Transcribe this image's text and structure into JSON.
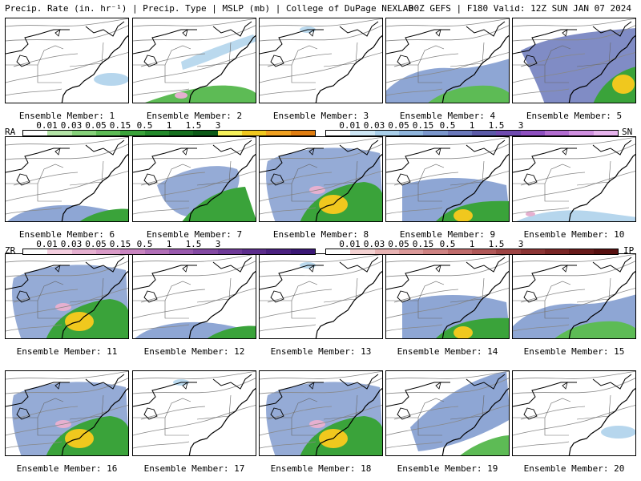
{
  "header": {
    "left": "Precip. Rate (in. hr⁻¹) | Precip. Type | MSLP (mb) | College of DuPage NEXLAB",
    "right": "00Z GEFS | F180 Valid: 12Z SUN JAN 07 2024"
  },
  "members": [
    {
      "label": "Ensemble Member: 1",
      "precip": "light"
    },
    {
      "label": "Ensemble Member: 2",
      "precip": "coastal-mix"
    },
    {
      "label": "Ensemble Member: 3",
      "precip": "minimal"
    },
    {
      "label": "Ensemble Member: 4",
      "precip": "broad"
    },
    {
      "label": "Ensemble Member: 5",
      "precip": "strong-ne"
    },
    {
      "label": "Ensemble Member: 6",
      "precip": "southern"
    },
    {
      "label": "Ensemble Member: 7",
      "precip": "coastal"
    },
    {
      "label": "Ensemble Member: 8",
      "precip": "strong"
    },
    {
      "label": "Ensemble Member: 9",
      "precip": "southern-core"
    },
    {
      "label": "Ensemble Member: 10",
      "precip": "light-south"
    },
    {
      "label": "Ensemble Member: 11",
      "precip": "strong"
    },
    {
      "label": "Ensemble Member: 12",
      "precip": "southern"
    },
    {
      "label": "Ensemble Member: 13",
      "precip": "minimal"
    },
    {
      "label": "Ensemble Member: 14",
      "precip": "southern-core"
    },
    {
      "label": "Ensemble Member: 15",
      "precip": "broad"
    },
    {
      "label": "Ensemble Member: 16",
      "precip": "strong"
    },
    {
      "label": "Ensemble Member: 17",
      "precip": "minimal"
    },
    {
      "label": "Ensemble Member: 18",
      "precip": "strong"
    },
    {
      "label": "Ensemble Member: 19",
      "precip": "offshore"
    },
    {
      "label": "Ensemble Member: 20",
      "precip": "light"
    }
  ],
  "legends": {
    "rain": {
      "code": "RA",
      "ticks": [
        "0.01",
        "0.03",
        "0.05",
        "0.15",
        "0.5",
        "1",
        "1.5",
        "3"
      ],
      "colors": [
        "#ffffff",
        "#b3e3a6",
        "#86d17a",
        "#5dbb55",
        "#3aa33a",
        "#238a2b",
        "#15701f",
        "#0c5a17",
        "#f5f05a",
        "#f0c81e",
        "#f0a020",
        "#e07d10"
      ]
    },
    "snow": {
      "code": "SN",
      "ticks": [
        "0.01",
        "0.03",
        "0.05",
        "0.15",
        "0.5",
        "1",
        "1.5",
        "3"
      ],
      "colors": [
        "#ffffff",
        "#cde6f5",
        "#a9cfea",
        "#8fb5dd",
        "#7a96cc",
        "#6a78bb",
        "#5b5aa8",
        "#6f4ab0",
        "#8e4fc0",
        "#b26cd0",
        "#cf8fdf",
        "#e6b3ec"
      ]
    },
    "freezing_rain": {
      "code": "ZR",
      "ticks": [
        "0.01",
        "0.03",
        "0.05",
        "0.15",
        "0.5",
        "1",
        "1.5",
        "3"
      ],
      "colors": [
        "#ffffff",
        "#f5cfe0",
        "#e6b0d0",
        "#d99ac7",
        "#c984c0",
        "#b26fb8",
        "#9a5aae",
        "#8449a3",
        "#6f3a98",
        "#5c2d8c",
        "#4b2180",
        "#3a1775"
      ]
    },
    "ice_pellets": {
      "code": "IP",
      "ticks": [
        "0.01",
        "0.03",
        "0.05",
        "0.15",
        "0.5",
        "1",
        "1.5",
        "3"
      ],
      "colors": [
        "#ffffff",
        "#f4d2d2",
        "#e8b3b3",
        "#dc9a9a",
        "#cf8383",
        "#c06c6c",
        "#b05858",
        "#9e4545",
        "#8c3535",
        "#7a2626",
        "#681a1a",
        "#560f0f"
      ]
    }
  }
}
